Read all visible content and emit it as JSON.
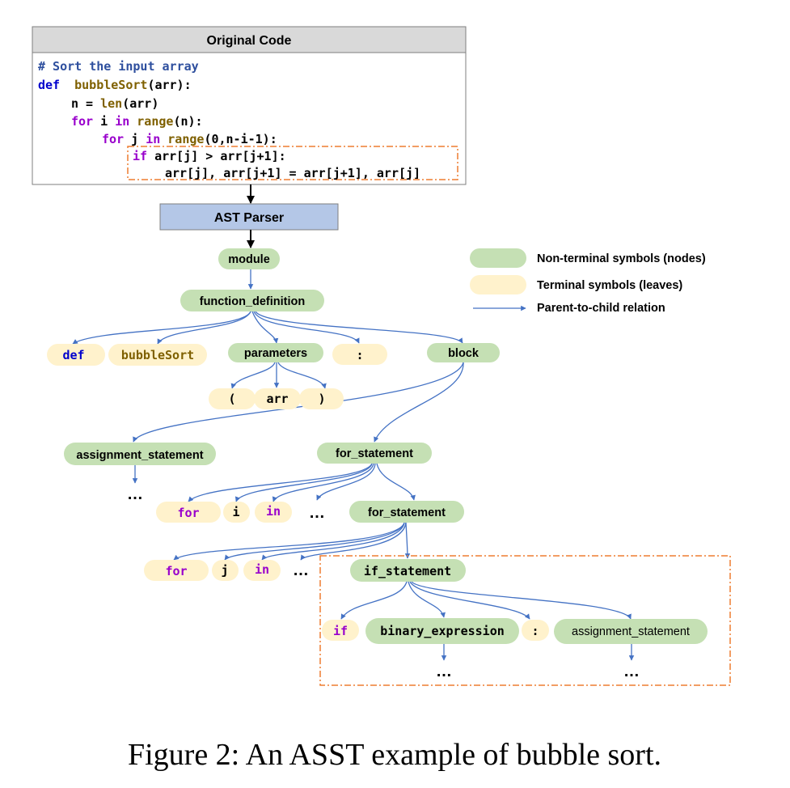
{
  "colors": {
    "nonterminal": "#c5e0b4",
    "terminal": "#fff2cc",
    "edge": "#4472c4",
    "keyword_blue": "#0000cc",
    "keyword_purple": "#9900cc",
    "func_brown": "#7f6000",
    "comment_blue": "#2e4f9e",
    "parser_fill": "#b4c7e7",
    "header_fill": "#d9d9d9",
    "highlight_orange": "#ed7d31"
  },
  "code_panel": {
    "title": "Original Code",
    "lines": {
      "l1": "# Sort the input array",
      "l2_kw": "def",
      "l2_fn": "bubbleSort",
      "l2_rest": "(arr):",
      "l3_a": "n = ",
      "l3_fn": "len",
      "l3_b": "(arr)",
      "l4_kw1": "for",
      "l4_a": " i ",
      "l4_kw2": "in",
      "l4_fn": " range",
      "l4_b": "(n):",
      "l5_kw1": "for",
      "l5_a": " j ",
      "l5_kw2": "in",
      "l5_fn": " range",
      "l5_b": "(0,n-i-1):",
      "l6_kw": "if",
      "l6_rest": " arr[j] > arr[j+1]:",
      "l7": "arr[j], arr[j+1] = arr[j+1], arr[j]"
    }
  },
  "parser_label": "AST Parser",
  "legend": {
    "nonterminal": "Non-terminal symbols (nodes)",
    "terminal": "Terminal symbols (leaves)",
    "edge": "Parent-to-child relation"
  },
  "nodes": {
    "module": "module",
    "function_definition": "function_definition",
    "def": "def",
    "bubbleSort": "bubbleSort",
    "parameters": "parameters",
    "colon1": ":",
    "block": "block",
    "lparen": "(",
    "arr": "arr",
    "rparen": ")",
    "assignment_statement": "assignment_statement",
    "for_statement_outer": "for_statement",
    "for1": "for",
    "i": "i",
    "in1": "in",
    "for_statement_inner": "for_statement",
    "for2": "for",
    "j": "j",
    "in2": "in",
    "if_statement": "if_statement",
    "if": "if",
    "binary_expression": "binary_expression",
    "colon2": ":",
    "assignment_statement2": "assignment_statement"
  },
  "ellipsis": "…",
  "caption": "Figure 2: An ASST example of bubble sort."
}
